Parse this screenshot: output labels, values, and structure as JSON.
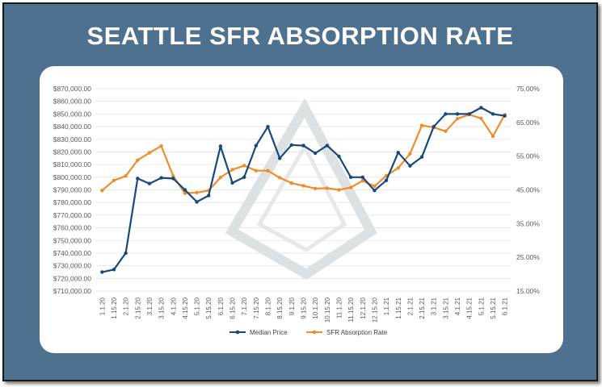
{
  "header": {
    "title": "SEATTLE SFR ABSORPTION RATE"
  },
  "colors": {
    "median": "#17497e",
    "absorption": "#ef8d2a",
    "frame": "#4f7190",
    "watermark": "#c4c9cf"
  },
  "chart_data": {
    "type": "line",
    "title": "",
    "grid": true,
    "legend": "bottom-center",
    "categories": [
      "1.1.20",
      "1.15.20",
      "2.1.20",
      "2.15.20",
      "3.1.20",
      "3.15.20",
      "4.1.20",
      "4.15.20",
      "5.1.20",
      "5.15.20",
      "6.1.20",
      "6.15.20",
      "7.1.20",
      "7.15.20",
      "8.1.20",
      "8.15.20",
      "9.1.20",
      "9.15.20",
      "10.1.20",
      "10.15.20",
      "11.1.20",
      "11.15.20",
      "12.1.20",
      "12.15.20",
      "1.1.21",
      "1.15.21",
      "2.1.21",
      "2.15.21",
      "3.1.21",
      "3.15.21",
      "4.1.21",
      "4.15.21",
      "5.1.21",
      "5.15.21",
      "6.1.21"
    ],
    "left_axis": {
      "ylim": [
        710000,
        870000
      ],
      "ticks": [
        {
          "value": 710000,
          "label": "$710,000.00"
        },
        {
          "value": 720000,
          "label": "$720,000.00"
        },
        {
          "value": 730000,
          "label": "$730,000.00"
        },
        {
          "value": 740000,
          "label": "$740,000.00"
        },
        {
          "value": 750000,
          "label": "$750,000.00"
        },
        {
          "value": 760000,
          "label": "$760,000.00"
        },
        {
          "value": 770000,
          "label": "$770,000.00"
        },
        {
          "value": 780000,
          "label": "$780,000.00"
        },
        {
          "value": 790000,
          "label": "$790,000.00"
        },
        {
          "value": 800000,
          "label": "$800,000.00"
        },
        {
          "value": 810000,
          "label": "$810,000.00"
        },
        {
          "value": 820000,
          "label": "$820,000.00"
        },
        {
          "value": 830000,
          "label": "$830,000.00"
        },
        {
          "value": 840000,
          "label": "$840,000.00"
        },
        {
          "value": 850000,
          "label": "$850,000.00"
        },
        {
          "value": 860000,
          "label": "$860,000.00"
        },
        {
          "value": 870000,
          "label": "$870,000.00"
        }
      ]
    },
    "right_axis": {
      "ylim": [
        0.15,
        0.75
      ],
      "ticks": [
        {
          "value": 0.15,
          "label": "15.00%"
        },
        {
          "value": 0.25,
          "label": "25.00%"
        },
        {
          "value": 0.35,
          "label": "35.00%"
        },
        {
          "value": 0.45,
          "label": "45.00%"
        },
        {
          "value": 0.55,
          "label": "55.00%"
        },
        {
          "value": 0.65,
          "label": "65.00%"
        },
        {
          "value": 0.75,
          "label": "75.00%"
        }
      ]
    },
    "series": [
      {
        "name": "Median Price",
        "axis": "left",
        "values": [
          725000,
          727000,
          740000,
          799000,
          795000,
          799500,
          799000,
          790000,
          780500,
          785500,
          824500,
          795500,
          800000,
          825000,
          840000,
          815000,
          825500,
          825000,
          819000,
          825000,
          816500,
          800000,
          800000,
          789500,
          797500,
          819500,
          809000,
          816000,
          840000,
          850000,
          850000,
          850000,
          855000,
          850000,
          848500
        ]
      },
      {
        "name": "SFR Absorption Rate",
        "axis": "right",
        "values": [
          0.448,
          0.478,
          0.491,
          0.538,
          0.56,
          0.58,
          0.491,
          0.44,
          0.442,
          0.448,
          0.487,
          0.51,
          0.522,
          0.507,
          0.507,
          0.486,
          0.47,
          0.462,
          0.454,
          0.455,
          0.45,
          0.457,
          0.477,
          0.461,
          0.492,
          0.515,
          0.557,
          0.641,
          0.635,
          0.624,
          0.661,
          0.673,
          0.662,
          0.609,
          0.673
        ]
      }
    ]
  }
}
